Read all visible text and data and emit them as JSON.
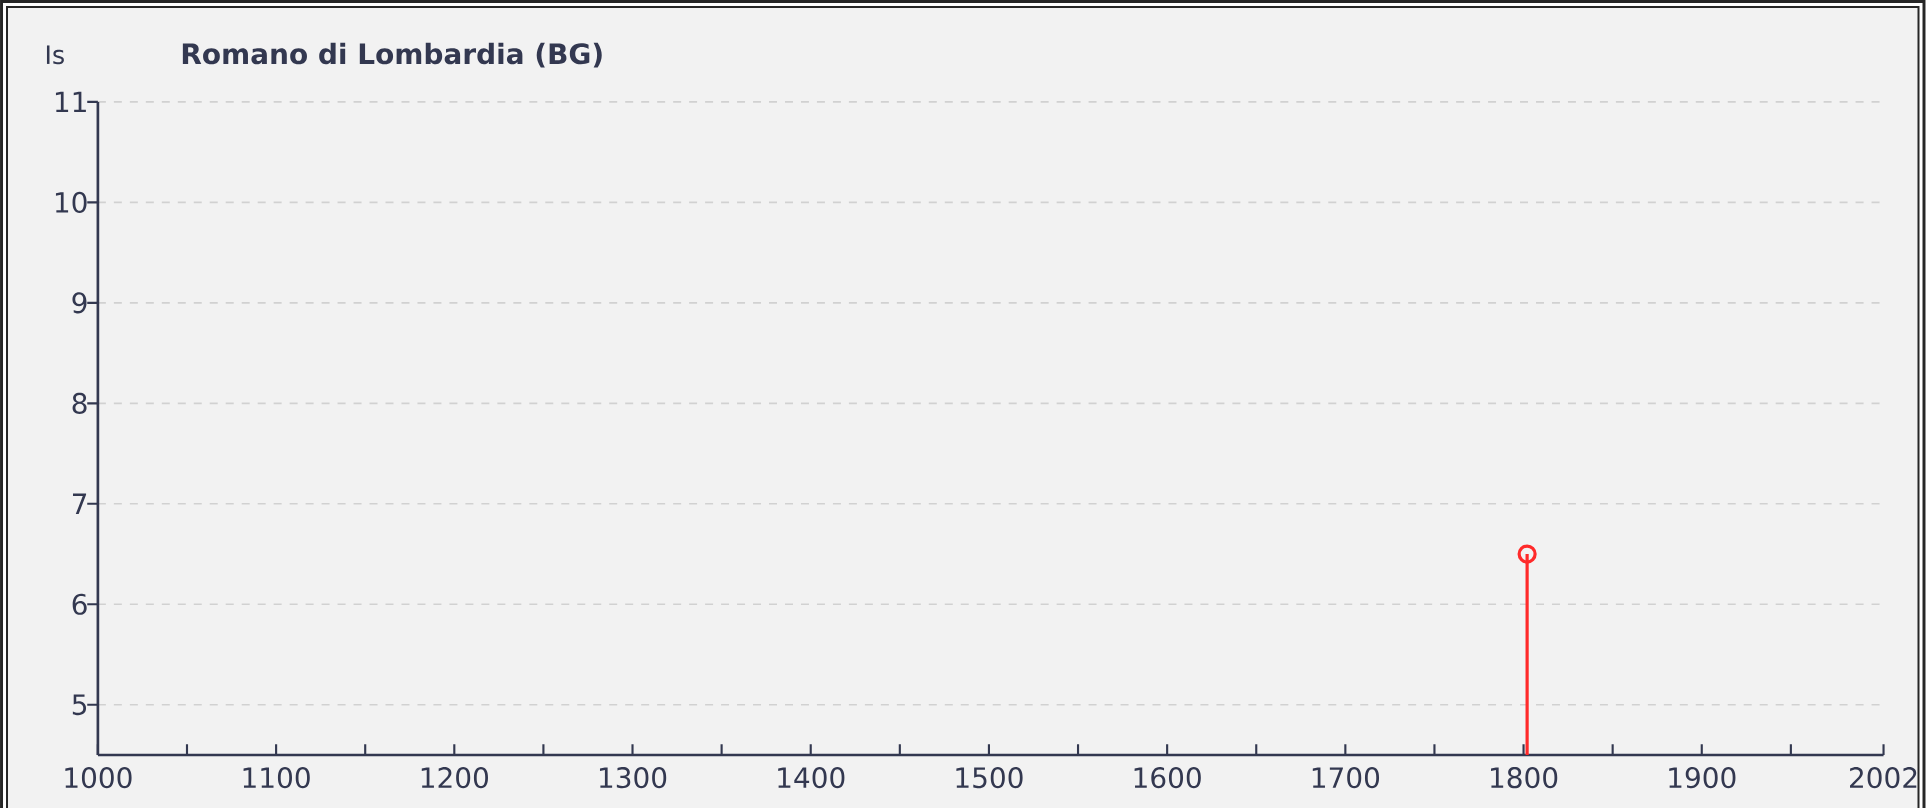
{
  "chart_data": {
    "type": "lollipop",
    "title": "Romano di Lombardia (BG)",
    "ylabel": "Is",
    "x": [
      1802
    ],
    "values": [
      6.5
    ],
    "color": "#ff2a2a",
    "marker": "circle",
    "xlim": [
      1000,
      2002
    ],
    "ylim": [
      4.5,
      11
    ],
    "xticks": [
      1000,
      {
        "value": 1050,
        "label": null
      },
      1100,
      {
        "value": 1150,
        "label": null
      },
      1200,
      {
        "value": 1250,
        "label": null
      },
      1300,
      {
        "value": 1350,
        "label": null
      },
      1400,
      {
        "value": 1450,
        "label": null
      },
      1500,
      {
        "value": 1550,
        "label": null
      },
      1600,
      {
        "value": 1650,
        "label": null
      },
      1700,
      {
        "value": 1750,
        "label": null
      },
      1800,
      {
        "value": 1850,
        "label": null
      },
      1900,
      {
        "value": 1950,
        "label": null
      },
      2002
    ],
    "yticks": [
      5,
      6,
      7,
      8,
      9,
      10,
      11
    ],
    "grid": "y"
  }
}
